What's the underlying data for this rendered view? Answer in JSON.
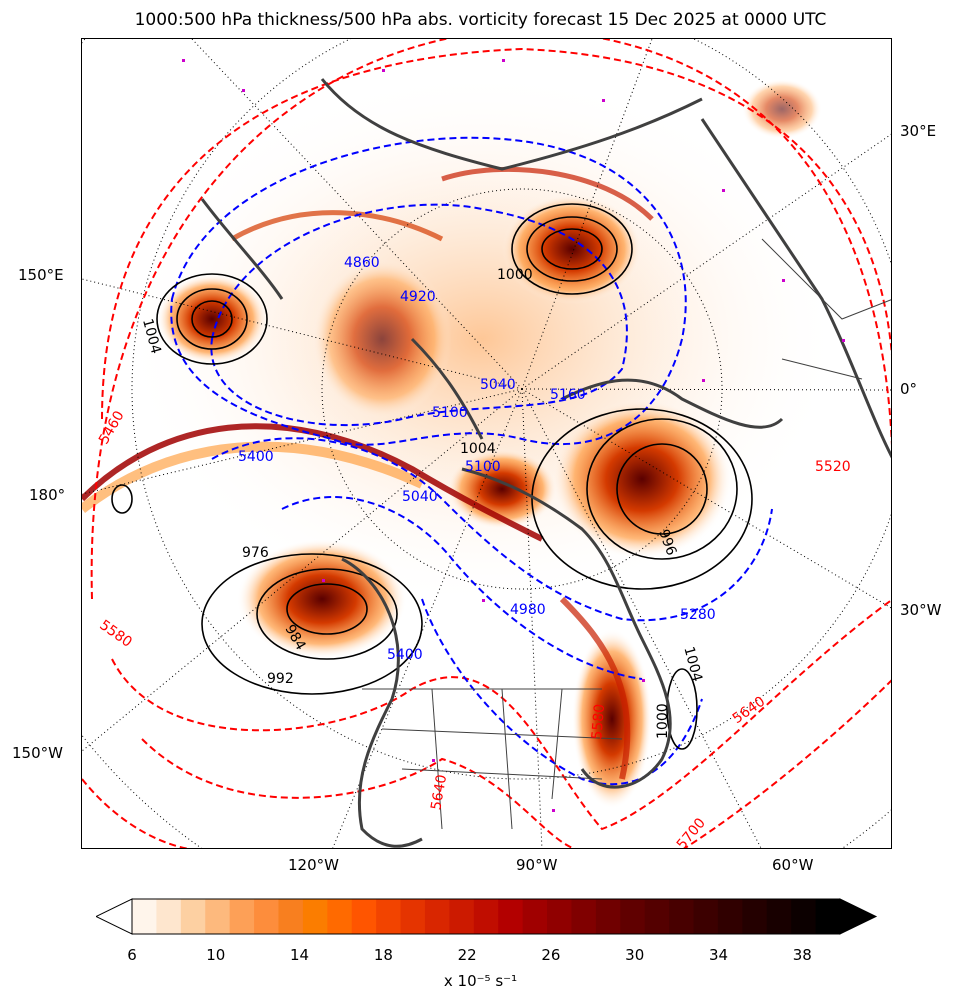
{
  "title": "1000:500 hPa thickness/500 hPa abs. vorticity forecast 15 Dec 2025 at 0000 UTC",
  "map": {
    "bottom_lon_labels": [
      "120°W",
      "90°W",
      "60°W"
    ],
    "right_labels": [
      "30°E",
      "0°",
      "30°W"
    ],
    "left_labels": [
      "150°E",
      "180°",
      "150°W"
    ],
    "thickness_low_labels": [
      "4860",
      "4920",
      "5040",
      "5100",
      "5160",
      "5280",
      "5400",
      "5040",
      "4980",
      "5100",
      "5400"
    ],
    "thickness_high_labels": [
      "5460",
      "5520",
      "5580",
      "5640",
      "5700",
      "5640",
      "5580"
    ],
    "mslp_labels": [
      "1004",
      "992",
      "984",
      "1004",
      "1000",
      "976",
      "1004",
      "1000",
      "996"
    ],
    "colors": {
      "vorticity_low": "#fdd9b5",
      "vorticity_mid": "#ff7f00",
      "vorticity_high": "#b30000",
      "vorticity_max": "#000000",
      "thickness_cold": "#0000ff",
      "thickness_warm": "#ff0000",
      "mslp": "#000000",
      "coastline": "#404040",
      "markers": "#cc00cc"
    }
  },
  "colorbar": {
    "ticks": [
      "6",
      "10",
      "14",
      "18",
      "22",
      "26",
      "30",
      "34",
      "38"
    ],
    "units": "x 10⁻⁵ s⁻¹",
    "colors": [
      "#fff5eb",
      "#fee6ce",
      "#fdd0a2",
      "#fdb97d",
      "#fda057",
      "#fd8d3c",
      "#f87f1f",
      "#fb7d00",
      "#ff6a00",
      "#ff5500",
      "#f24400",
      "#e53400",
      "#d92600",
      "#cc1a00",
      "#c00d00",
      "#b30000",
      "#a00000",
      "#900000",
      "#800000",
      "#700000",
      "#600000",
      "#540000",
      "#480000",
      "#3c0000",
      "#300000",
      "#240000",
      "#180000",
      "#0c0000",
      "#000000"
    ]
  }
}
